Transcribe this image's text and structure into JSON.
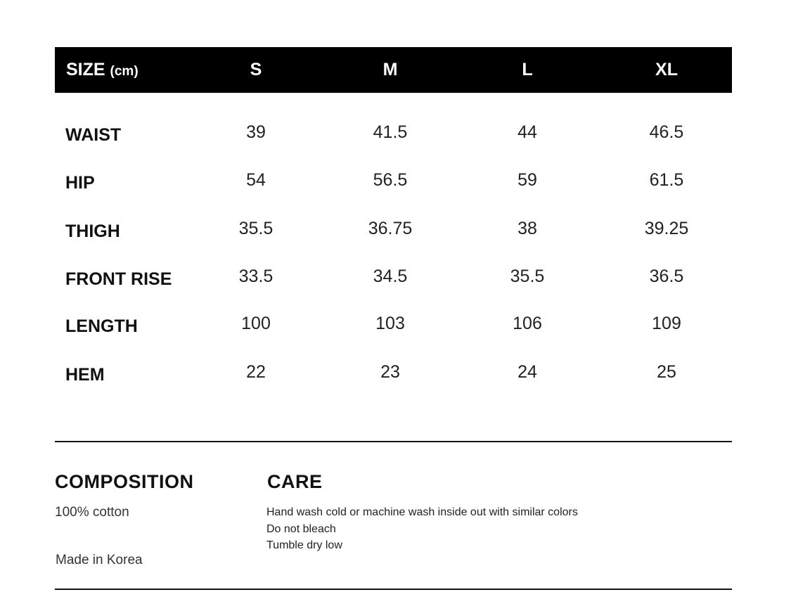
{
  "size_table": {
    "header_title": "SIZE",
    "header_unit": "(cm)",
    "sizes": [
      "S",
      "M",
      "L",
      "XL"
    ],
    "rows": [
      {
        "label": "WAIST",
        "values": [
          "39",
          "41.5",
          "44",
          "46.5"
        ]
      },
      {
        "label": "HIP",
        "values": [
          "54",
          "56.5",
          "59",
          "61.5"
        ]
      },
      {
        "label": "THIGH",
        "values": [
          "35.5",
          "36.75",
          "38",
          "39.25"
        ]
      },
      {
        "label": "FRONT RISE",
        "values": [
          "33.5",
          "34.5",
          "35.5",
          "36.5"
        ]
      },
      {
        "label": "LENGTH",
        "values": [
          "100",
          "103",
          "106",
          "109"
        ]
      },
      {
        "label": "HEM",
        "values": [
          "22",
          "23",
          "24",
          "25"
        ]
      }
    ]
  },
  "composition": {
    "title": "COMPOSITION",
    "material": "100% cotton",
    "origin": "Made in Korea"
  },
  "care": {
    "title": "CARE",
    "instructions": [
      "Hand wash cold or machine wash inside out with similar colors",
      "Do not bleach",
      "Tumble dry low"
    ]
  },
  "colors": {
    "header_background": "#000000",
    "header_text": "#ffffff",
    "text": "#111111"
  }
}
